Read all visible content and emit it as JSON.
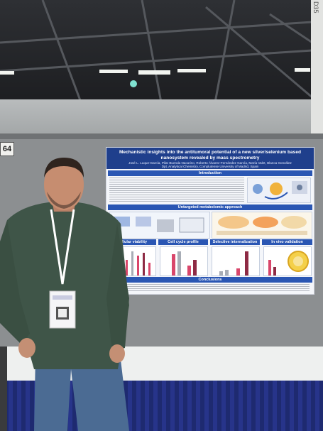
{
  "booth_number": "64",
  "panel_text": "D35",
  "poster": {
    "title": "Mechanistic insights into the antitumoral potential of a new silver/selenium based nanosystem revealed by mass spectrometry",
    "authors": "José L. Luque-García, Pilar Buenda Nacarino, Roberto Álvarez-Fernández García, María Valet, Blanca González",
    "affiliation": "Dpt. Analytical Chemistry, Complutense University of Madrid, Spain",
    "sections": {
      "introduction": "Introduction",
      "untargeted": "Untargeted metabolomic approach",
      "cell_viability": "Cellular viability",
      "cell_cycle": "Cell cycle profile",
      "selective_internalization": "Selective internalization",
      "in_vivo": "In vivo validation",
      "conclusions": "Conclusions"
    }
  },
  "colors": {
    "poster_header": "#1f3f8c",
    "section_bar": "#2a56b3",
    "shirt": "#3f5548",
    "table_skirt": "#1e2a70"
  }
}
